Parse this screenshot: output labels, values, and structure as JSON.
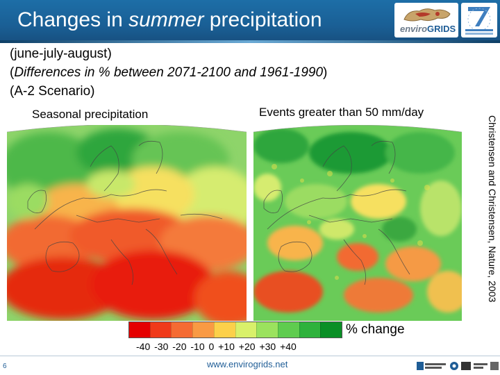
{
  "header": {
    "title_pre": "Changes in ",
    "title_em": "summer",
    "title_post": " precipitation",
    "logo_wordmark_a": "enviro",
    "logo_wordmark_b": "GRIDS"
  },
  "subtitle": {
    "line1": "(june-july-august)",
    "line2_open": "(",
    "line2_em": "Differences in % between 2071-2100 and 1961-1990",
    "line2_close": ")",
    "line3": "(A-2 Scenario)"
  },
  "panels": {
    "left_label": "Seasonal precipitation",
    "right_label": "Events greater than 50 mm/day"
  },
  "legend": {
    "title": "% change",
    "ticks": "-40  -30  -20  -10  0  +10  +20  +30  +40",
    "colors": [
      "#e50000",
      "#f03a1a",
      "#f56b33",
      "#f99a44",
      "#fcd04a",
      "#d9f06a",
      "#9be25e",
      "#5fcc4f",
      "#2eb23c",
      "#0a8f26"
    ]
  },
  "credit": "Christensen and Christensen, Nature, 2003",
  "footer": {
    "slide_number": "6",
    "url": "www.envirogrids.net"
  }
}
